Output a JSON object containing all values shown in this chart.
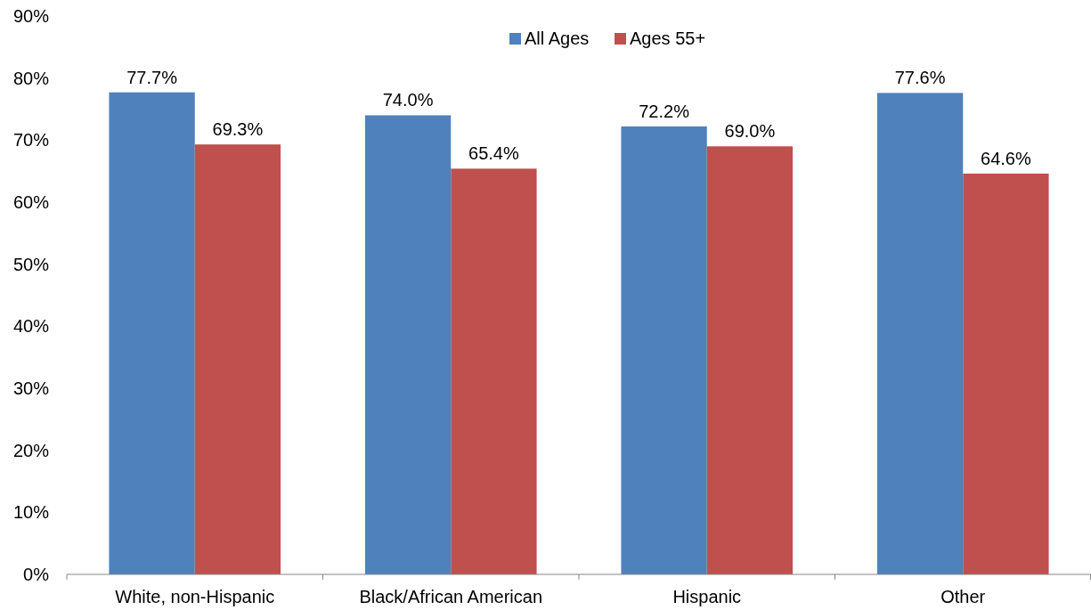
{
  "chart_data": {
    "type": "bar",
    "categories": [
      "White, non-Hispanic",
      "Black/African American",
      "Hispanic",
      "Other"
    ],
    "series": [
      {
        "name": "All Ages",
        "color": "#4f81bd",
        "values": [
          77.7,
          74.0,
          72.2,
          77.6
        ],
        "value_labels": [
          "77.7%",
          "74.0%",
          "72.2%",
          "77.6%"
        ]
      },
      {
        "name": "Ages 55+",
        "color": "#c0504d",
        "values": [
          69.3,
          65.4,
          69.0,
          64.6
        ],
        "value_labels": [
          "69.3%",
          "65.4%",
          "69.0%",
          "64.6%"
        ]
      }
    ],
    "ylim": [
      0,
      90
    ],
    "yticks": [
      {
        "value": 0,
        "label": "0%"
      },
      {
        "value": 10,
        "label": "10%"
      },
      {
        "value": 20,
        "label": "20%"
      },
      {
        "value": 30,
        "label": "30%"
      },
      {
        "value": 40,
        "label": "40%"
      },
      {
        "value": 50,
        "label": "50%"
      },
      {
        "value": 60,
        "label": "60%"
      },
      {
        "value": 70,
        "label": "70%"
      },
      {
        "value": 80,
        "label": "80%"
      },
      {
        "value": 90,
        "label": "90%"
      }
    ],
    "legend": "top"
  }
}
